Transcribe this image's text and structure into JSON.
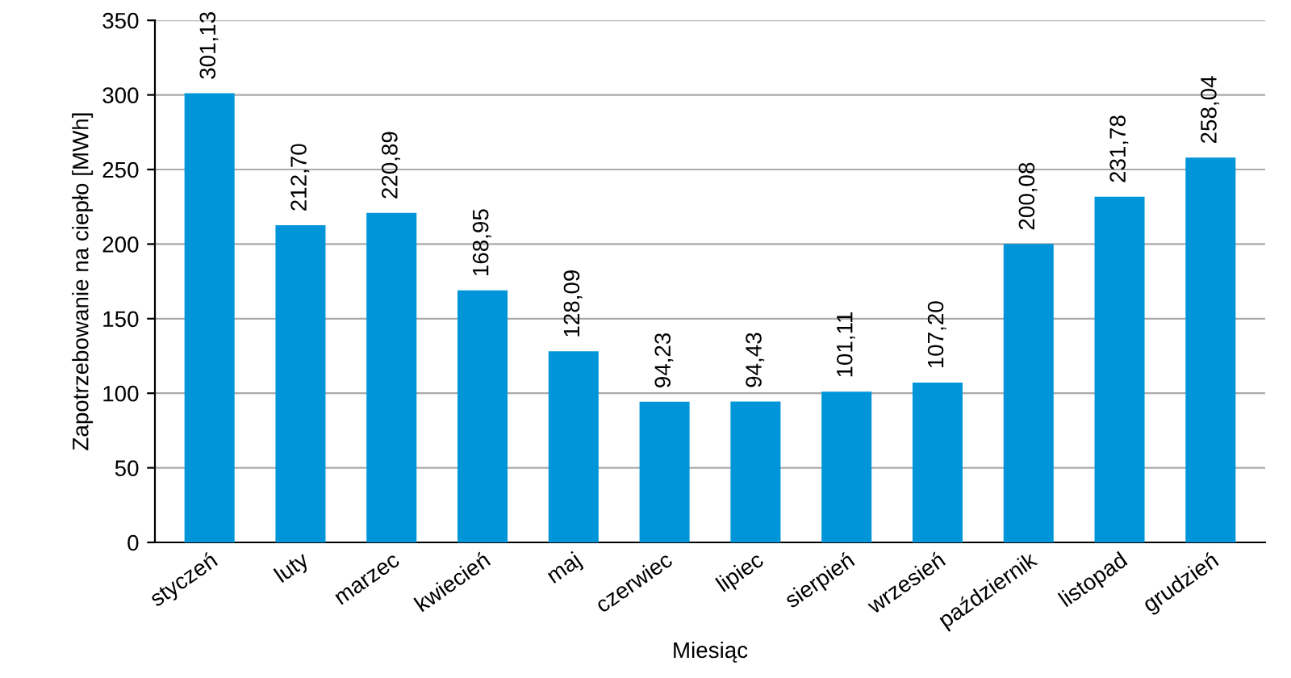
{
  "chart_data": {
    "type": "bar",
    "xlabel": "Miesiąc",
    "ylabel": "Zapotrzebowanie na ciepło [MWh]",
    "categories": [
      "styczeń",
      "luty",
      "marzec",
      "kwiecień",
      "maj",
      "czerwiec",
      "lipiec",
      "sierpień",
      "wrzesień",
      "październik",
      "listopad",
      "grudzień"
    ],
    "values": [
      301.13,
      212.7,
      220.89,
      168.95,
      128.09,
      94.23,
      94.43,
      101.11,
      107.2,
      200.08,
      231.78,
      258.04
    ],
    "value_labels": [
      "301,13",
      "212,70",
      "220,89",
      "168,95",
      "128,09",
      "94,23",
      "94,43",
      "101,11",
      "107,20",
      "200,08",
      "231,78",
      "258,04"
    ],
    "color": "#0095d9",
    "ylim": [
      0,
      350
    ],
    "yticks": [
      0,
      50,
      100,
      150,
      200,
      250,
      300,
      350
    ],
    "grid": "y",
    "legend": false
  }
}
